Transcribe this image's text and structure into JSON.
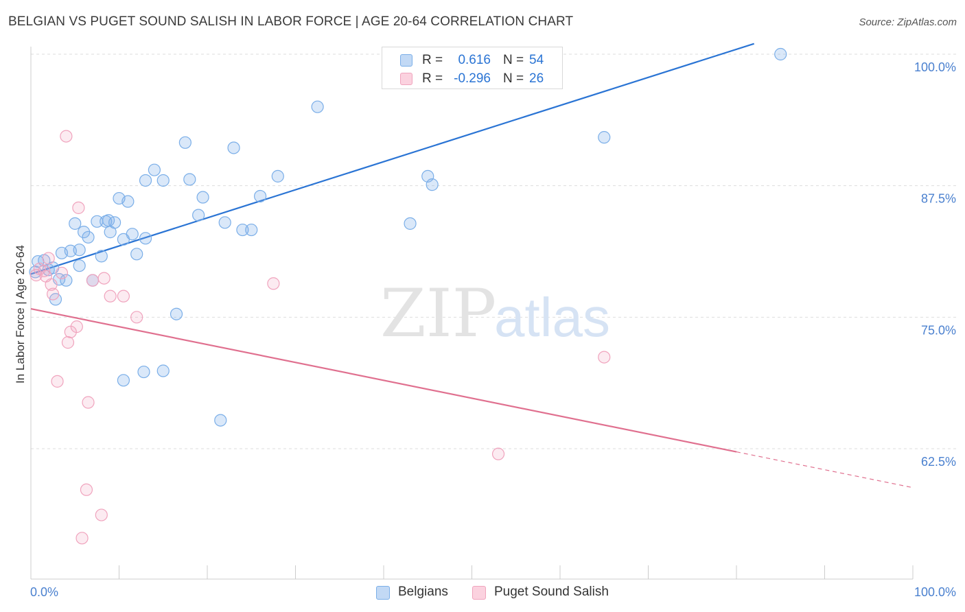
{
  "title": "BELGIAN VS PUGET SOUND SALISH IN LABOR FORCE | AGE 20-64 CORRELATION CHART",
  "source": "Source: ZipAtlas.com",
  "watermark": {
    "zip": "ZIP",
    "atlas": "atlas"
  },
  "legend_top": {
    "r_label": "R =",
    "n_label": "N =",
    "rows": [
      {
        "r": "0.616",
        "n": "54"
      },
      {
        "r": "-0.296",
        "n": "26"
      }
    ]
  },
  "chart_data": {
    "type": "scatter",
    "title": "BELGIAN VS PUGET SOUND SALISH IN LABOR FORCE | AGE 20-64 CORRELATION CHART",
    "xlabel": "",
    "ylabel": "In Labor Force | Age 20-64",
    "xlim": [
      0,
      100
    ],
    "ylim": [
      50,
      101
    ],
    "x_tick_labels": [
      "0.0%",
      "100.0%"
    ],
    "y_ticks": [
      62.5,
      75.0,
      87.5,
      100.0
    ],
    "y_tick_labels": [
      "62.5%",
      "75.0%",
      "87.5%",
      "100.0%"
    ],
    "grid": true,
    "legend_position": "top-center",
    "series": [
      {
        "name": "Belgians",
        "color": "#7aaee8",
        "line_color": "#2a74d4",
        "r": 0.616,
        "n": 54,
        "trend": {
          "x0": 0,
          "y0": 79.1,
          "x1": 82,
          "y1": 101.0,
          "dash_from": null,
          "dash_to": null
        },
        "points": [
          [
            0.5,
            79.3
          ],
          [
            0.8,
            80.3
          ],
          [
            1.5,
            80.4
          ],
          [
            2.0,
            79.5
          ],
          [
            2.5,
            79.7
          ],
          [
            2.8,
            76.7
          ],
          [
            3.2,
            78.6
          ],
          [
            4.0,
            78.5
          ],
          [
            3.5,
            81.1
          ],
          [
            4.5,
            81.3
          ],
          [
            5.0,
            83.9
          ],
          [
            5.5,
            81.4
          ],
          [
            5.5,
            79.9
          ],
          [
            6.0,
            83.1
          ],
          [
            6.5,
            82.6
          ],
          [
            7.0,
            78.5
          ],
          [
            7.5,
            84.1
          ],
          [
            8.0,
            80.8
          ],
          [
            8.5,
            84.1
          ],
          [
            8.8,
            84.2
          ],
          [
            9.0,
            83.1
          ],
          [
            9.5,
            84.0
          ],
          [
            10.0,
            86.3
          ],
          [
            10.5,
            82.4
          ],
          [
            11.0,
            86.0
          ],
          [
            11.5,
            82.9
          ],
          [
            12.0,
            81.0
          ],
          [
            13.0,
            82.5
          ],
          [
            13.0,
            88.0
          ],
          [
            14.0,
            89.0
          ],
          [
            15.0,
            88.0
          ],
          [
            16.5,
            75.3
          ],
          [
            17.5,
            91.6
          ],
          [
            18.0,
            88.1
          ],
          [
            19.0,
            84.7
          ],
          [
            19.5,
            86.4
          ],
          [
            22.0,
            84.0
          ],
          [
            23.0,
            91.1
          ],
          [
            24.0,
            83.3
          ],
          [
            25.0,
            83.3
          ],
          [
            26.0,
            86.5
          ],
          [
            28.0,
            88.4
          ],
          [
            10.5,
            69.0
          ],
          [
            12.8,
            69.8
          ],
          [
            15.0,
            69.9
          ],
          [
            21.5,
            65.2
          ],
          [
            32.5,
            95.0
          ],
          [
            43.0,
            83.9
          ],
          [
            45.0,
            88.4
          ],
          [
            45.5,
            87.6
          ],
          [
            52.0,
            97.5
          ],
          [
            65.0,
            92.1
          ],
          [
            85.0,
            100.0
          ],
          [
            49.0,
            100.0
          ]
        ]
      },
      {
        "name": "Puget Sound Salish",
        "color": "#f0a3bd",
        "line_color": "#e0708f",
        "r": -0.296,
        "n": 26,
        "trend": {
          "x0": 0,
          "y0": 75.8,
          "x1": 80,
          "y1": 62.2,
          "dash_from": 80,
          "dash_to": 100,
          "y_end": 58.8
        },
        "points": [
          [
            0.6,
            79.0
          ],
          [
            1.0,
            79.6
          ],
          [
            1.5,
            79.4
          ],
          [
            1.7,
            78.9
          ],
          [
            2.0,
            80.6
          ],
          [
            2.3,
            78.1
          ],
          [
            2.5,
            77.2
          ],
          [
            3.0,
            68.9
          ],
          [
            4.0,
            92.2
          ],
          [
            4.2,
            72.6
          ],
          [
            4.5,
            73.6
          ],
          [
            5.2,
            74.1
          ],
          [
            5.4,
            85.4
          ],
          [
            5.8,
            54.0
          ],
          [
            6.3,
            58.6
          ],
          [
            6.5,
            66.9
          ],
          [
            7.0,
            78.5
          ],
          [
            8.0,
            56.2
          ],
          [
            8.3,
            78.7
          ],
          [
            9.0,
            77.0
          ],
          [
            10.5,
            77.0
          ],
          [
            12.0,
            75.0
          ],
          [
            27.5,
            78.2
          ],
          [
            53.0,
            62.0
          ],
          [
            65.0,
            71.2
          ],
          [
            3.5,
            79.2
          ]
        ]
      }
    ]
  },
  "legend_bottom": [
    {
      "label": "Belgians"
    },
    {
      "label": "Puget Sound Salish"
    }
  ]
}
